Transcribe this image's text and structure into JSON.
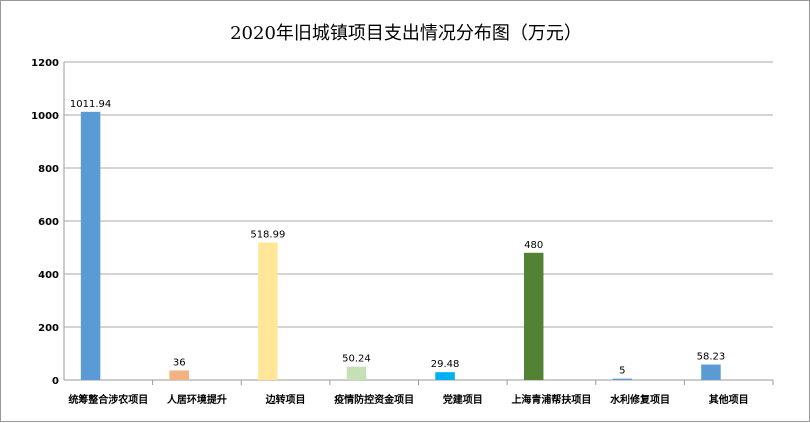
{
  "chart_data": {
    "type": "bar",
    "title": "2020年旧城镇项目支出情况分布图（万元）",
    "categories": [
      "统筹整合涉农项目",
      "人居环境提升",
      "边转项目",
      "疫情防控资金项目",
      "党建项目",
      "上海青浦帮扶项目",
      "水利修复项目",
      "其他项目"
    ],
    "values": [
      1011.94,
      36,
      518.99,
      50.24,
      29.48,
      480,
      5,
      58.23
    ],
    "labels": [
      "1011.94",
      "36",
      "518.99",
      "50.24",
      "29.48",
      "480",
      "5",
      "58.23"
    ],
    "colors": [
      "#5b9bd5",
      "#f4b183",
      "#ffe699",
      "#c5e0b4",
      "#00b0f0",
      "#548235",
      "#5b9bd5",
      "#5b9bd5"
    ],
    "ylim": [
      0,
      1200
    ],
    "yticks": [
      0,
      200,
      400,
      600,
      800,
      1000,
      1200
    ],
    "grid": true,
    "legend": "none"
  }
}
